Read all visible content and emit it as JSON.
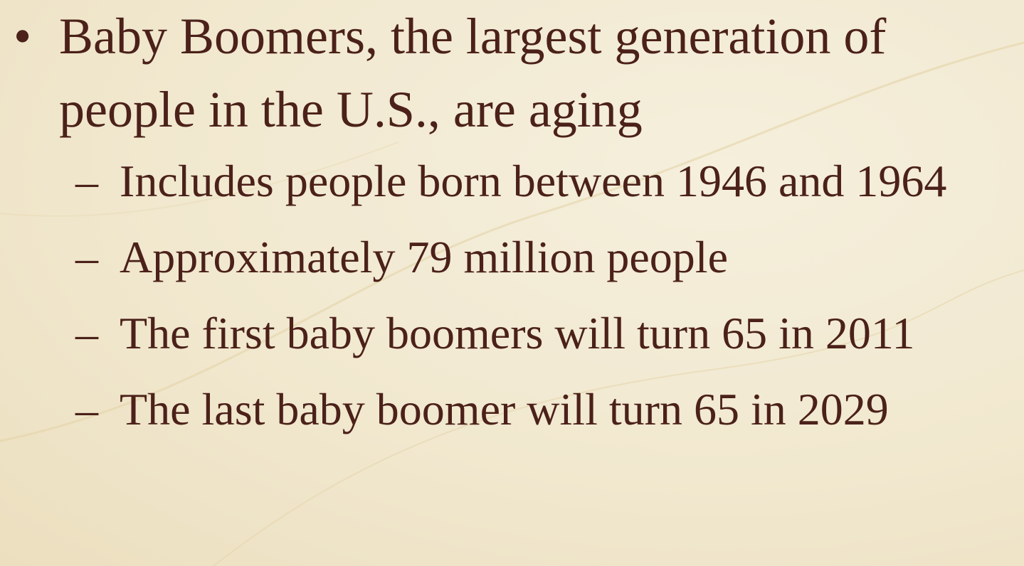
{
  "bullets": [
    {
      "text": "Baby Boomers, the largest generation of people in the U.S., are aging",
      "subitems": [
        "Includes people born between 1946 and 1964",
        "Approximately 79 million people",
        "The first baby boomers will turn 65 in 2011",
        "The last baby boomer will turn 65 in 2029"
      ]
    }
  ]
}
